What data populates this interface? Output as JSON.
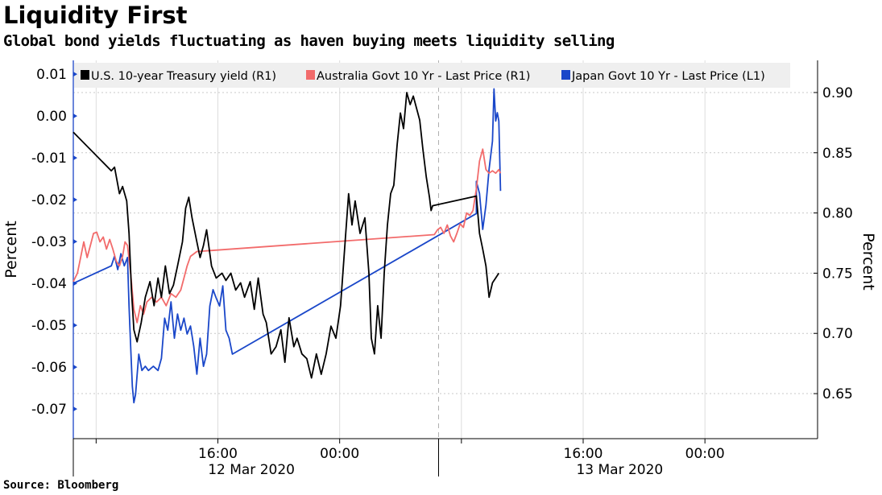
{
  "chart_data": {
    "type": "line",
    "title": "Liquidity First",
    "subtitle": "Global bond yields fluctuating as haven buying meets liquidity selling",
    "source": "Source: Bloomberg",
    "x_unit": "hours since 12 Mar 2020 00:00",
    "xlim": [
      6.5,
      55.4
    ],
    "x_ticks": [
      {
        "x": 16,
        "label": "16:00"
      },
      {
        "x": 24,
        "label": "00:00"
      },
      {
        "x": 40,
        "label": "16:00"
      },
      {
        "x": 48,
        "label": "00:00"
      }
    ],
    "x_gridlines": [
      8,
      16,
      24,
      32,
      40,
      48
    ],
    "date_labels": [
      {
        "x": 18.2,
        "label": "12 Mar 2020"
      },
      {
        "x": 42.4,
        "label": "13 Mar 2020"
      }
    ],
    "day_separator": 30.5,
    "ylabel_left": "Percent",
    "ylabel_right": "Percent",
    "ylim_left": [
      -0.0771,
      0.0133
    ],
    "ylim_right": [
      0.6126,
      0.9267
    ],
    "left_ticks": [
      0.01,
      0.0,
      -0.01,
      -0.02,
      -0.03,
      -0.04,
      -0.05,
      -0.06,
      -0.07
    ],
    "left_tick_labels": [
      "0.01",
      "0.00",
      "-0.01",
      "-0.02",
      "-0.03",
      "-0.04",
      "-0.05",
      "-0.06",
      "-0.07"
    ],
    "right_ticks": [
      0.9,
      0.85,
      0.8,
      0.75,
      0.7,
      0.65
    ],
    "right_tick_labels": [
      "0.90",
      "0.85",
      "0.80",
      "0.75",
      "0.70",
      "0.65"
    ],
    "grid": true,
    "legend_placement": "top",
    "series": [
      {
        "name": "U.S. 10-year Treasury yield (R1)",
        "axis": "right",
        "color": "#000000",
        "points": [
          [
            6.5,
            0.867
          ],
          [
            9.0,
            0.835
          ],
          [
            9.21,
            0.838
          ],
          [
            9.53,
            0.816
          ],
          [
            9.74,
            0.822
          ],
          [
            10.01,
            0.81
          ],
          [
            10.16,
            0.783
          ],
          [
            10.32,
            0.736
          ],
          [
            10.48,
            0.703
          ],
          [
            10.69,
            0.693
          ],
          [
            10.96,
            0.709
          ],
          [
            11.23,
            0.73
          ],
          [
            11.54,
            0.743
          ],
          [
            11.81,
            0.723
          ],
          [
            12.07,
            0.746
          ],
          [
            12.29,
            0.73
          ],
          [
            12.55,
            0.756
          ],
          [
            12.82,
            0.733
          ],
          [
            13.08,
            0.74
          ],
          [
            13.35,
            0.756
          ],
          [
            13.67,
            0.776
          ],
          [
            13.88,
            0.804
          ],
          [
            14.09,
            0.813
          ],
          [
            14.3,
            0.796
          ],
          [
            14.62,
            0.776
          ],
          [
            14.83,
            0.763
          ],
          [
            15.05,
            0.773
          ],
          [
            15.26,
            0.786
          ],
          [
            15.58,
            0.756
          ],
          [
            15.89,
            0.746
          ],
          [
            16.27,
            0.75
          ],
          [
            16.53,
            0.744
          ],
          [
            16.85,
            0.75
          ],
          [
            17.17,
            0.736
          ],
          [
            17.49,
            0.742
          ],
          [
            17.75,
            0.73
          ],
          [
            18.12,
            0.743
          ],
          [
            18.39,
            0.72
          ],
          [
            18.65,
            0.746
          ],
          [
            18.97,
            0.716
          ],
          [
            19.18,
            0.709
          ],
          [
            19.5,
            0.683
          ],
          [
            19.82,
            0.689
          ],
          [
            20.14,
            0.703
          ],
          [
            20.4,
            0.676
          ],
          [
            20.67,
            0.713
          ],
          [
            20.99,
            0.689
          ],
          [
            21.2,
            0.696
          ],
          [
            21.52,
            0.683
          ],
          [
            21.84,
            0.679
          ],
          [
            22.15,
            0.663
          ],
          [
            22.47,
            0.683
          ],
          [
            22.79,
            0.666
          ],
          [
            23.11,
            0.683
          ],
          [
            23.43,
            0.706
          ],
          [
            23.75,
            0.696
          ],
          [
            24.06,
            0.723
          ],
          [
            24.38,
            0.78
          ],
          [
            24.59,
            0.816
          ],
          [
            24.81,
            0.79
          ],
          [
            25.02,
            0.81
          ],
          [
            25.34,
            0.783
          ],
          [
            25.66,
            0.796
          ],
          [
            25.92,
            0.75
          ],
          [
            26.08,
            0.696
          ],
          [
            26.29,
            0.683
          ],
          [
            26.5,
            0.723
          ],
          [
            26.72,
            0.696
          ],
          [
            26.93,
            0.75
          ],
          [
            27.14,
            0.79
          ],
          [
            27.35,
            0.816
          ],
          [
            27.56,
            0.823
          ],
          [
            27.78,
            0.857
          ],
          [
            27.99,
            0.883
          ],
          [
            28.2,
            0.87
          ],
          [
            28.41,
            0.9
          ],
          [
            28.63,
            0.89
          ],
          [
            28.84,
            0.897
          ],
          [
            29.05,
            0.887
          ],
          [
            29.26,
            0.877
          ],
          [
            29.47,
            0.853
          ],
          [
            29.69,
            0.83
          ],
          [
            29.9,
            0.813
          ],
          [
            30.01,
            0.802
          ],
          [
            30.11,
            0.806
          ],
          [
            32.98,
            0.814
          ],
          [
            33.19,
            0.783
          ],
          [
            33.4,
            0.77
          ],
          [
            33.61,
            0.756
          ],
          [
            33.82,
            0.73
          ],
          [
            34.04,
            0.742
          ],
          [
            34.25,
            0.746
          ],
          [
            34.46,
            0.75
          ]
        ]
      },
      {
        "name": "Australia Govt 10 Yr - Last Price (R1)",
        "axis": "right",
        "color": "#f26b6b",
        "points": [
          [
            6.5,
            0.743
          ],
          [
            6.77,
            0.75
          ],
          [
            6.98,
            0.763
          ],
          [
            7.19,
            0.776
          ],
          [
            7.41,
            0.763
          ],
          [
            7.62,
            0.773
          ],
          [
            7.83,
            0.783
          ],
          [
            8.04,
            0.784
          ],
          [
            8.25,
            0.776
          ],
          [
            8.47,
            0.78
          ],
          [
            8.68,
            0.77
          ],
          [
            8.89,
            0.778
          ],
          [
            9.1,
            0.77
          ],
          [
            9.32,
            0.76
          ],
          [
            9.53,
            0.756
          ],
          [
            9.74,
            0.764
          ],
          [
            9.9,
            0.776
          ],
          [
            10.06,
            0.773
          ],
          [
            10.27,
            0.75
          ],
          [
            10.48,
            0.72
          ],
          [
            10.69,
            0.709
          ],
          [
            10.91,
            0.723
          ],
          [
            11.12,
            0.716
          ],
          [
            11.33,
            0.726
          ],
          [
            11.65,
            0.73
          ],
          [
            11.97,
            0.726
          ],
          [
            12.29,
            0.73
          ],
          [
            12.6,
            0.723
          ],
          [
            12.92,
            0.733
          ],
          [
            13.24,
            0.73
          ],
          [
            13.56,
            0.736
          ],
          [
            13.77,
            0.746
          ],
          [
            13.98,
            0.756
          ],
          [
            14.2,
            0.764
          ],
          [
            14.41,
            0.766
          ],
          [
            14.62,
            0.768
          ],
          [
            30.22,
            0.782
          ],
          [
            30.43,
            0.786
          ],
          [
            30.64,
            0.788
          ],
          [
            30.85,
            0.783
          ],
          [
            31.07,
            0.79
          ],
          [
            31.28,
            0.781
          ],
          [
            31.49,
            0.776
          ],
          [
            31.7,
            0.783
          ],
          [
            31.92,
            0.791
          ],
          [
            32.13,
            0.788
          ],
          [
            32.34,
            0.8
          ],
          [
            32.55,
            0.798
          ],
          [
            32.76,
            0.802
          ],
          [
            32.98,
            0.82
          ],
          [
            33.19,
            0.843
          ],
          [
            33.4,
            0.853
          ],
          [
            33.61,
            0.836
          ],
          [
            33.82,
            0.833
          ],
          [
            34.04,
            0.835
          ],
          [
            34.25,
            0.833
          ],
          [
            34.46,
            0.836
          ],
          [
            34.57,
            0.833
          ]
        ]
      },
      {
        "name": "Japan Govt 10 Yr - Last Price (L1)",
        "axis": "left",
        "color": "#1a47c9",
        "points": [
          [
            6.5,
            -0.04
          ],
          [
            9.0,
            -0.0358
          ],
          [
            9.21,
            -0.0335
          ],
          [
            9.42,
            -0.0367
          ],
          [
            9.63,
            -0.0329
          ],
          [
            9.85,
            -0.0358
          ],
          [
            10.06,
            -0.0338
          ],
          [
            10.16,
            -0.0454
          ],
          [
            10.27,
            -0.055
          ],
          [
            10.38,
            -0.0646
          ],
          [
            10.48,
            -0.0685
          ],
          [
            10.59,
            -0.0665
          ],
          [
            10.8,
            -0.0569
          ],
          [
            11.01,
            -0.0608
          ],
          [
            11.23,
            -0.0598
          ],
          [
            11.44,
            -0.0608
          ],
          [
            11.76,
            -0.0598
          ],
          [
            12.07,
            -0.0608
          ],
          [
            12.29,
            -0.0579
          ],
          [
            12.5,
            -0.0483
          ],
          [
            12.71,
            -0.0512
          ],
          [
            12.92,
            -0.0444
          ],
          [
            13.14,
            -0.0531
          ],
          [
            13.35,
            -0.0473
          ],
          [
            13.56,
            -0.0512
          ],
          [
            13.77,
            -0.0483
          ],
          [
            13.98,
            -0.0521
          ],
          [
            14.2,
            -0.0502
          ],
          [
            14.41,
            -0.055
          ],
          [
            14.62,
            -0.0617
          ],
          [
            14.83,
            -0.0531
          ],
          [
            15.05,
            -0.0598
          ],
          [
            15.26,
            -0.0569
          ],
          [
            15.47,
            -0.0454
          ],
          [
            15.68,
            -0.0415
          ],
          [
            15.89,
            -0.0435
          ],
          [
            16.11,
            -0.0454
          ],
          [
            16.32,
            -0.0406
          ],
          [
            16.53,
            -0.0512
          ],
          [
            16.74,
            -0.0531
          ],
          [
            16.95,
            -0.0569
          ],
          [
            32.98,
            -0.0233
          ],
          [
            32.98,
            -0.0156
          ],
          [
            33.19,
            -0.0185
          ],
          [
            33.4,
            -0.0271
          ],
          [
            33.61,
            -0.0213
          ],
          [
            33.82,
            -0.0127
          ],
          [
            34.04,
            -0.006
          ],
          [
            34.14,
            0.0065
          ],
          [
            34.25,
            -0.0012
          ],
          [
            34.36,
            0.0008
          ],
          [
            34.46,
            -0.0012
          ],
          [
            34.57,
            -0.0179
          ]
        ]
      }
    ]
  }
}
